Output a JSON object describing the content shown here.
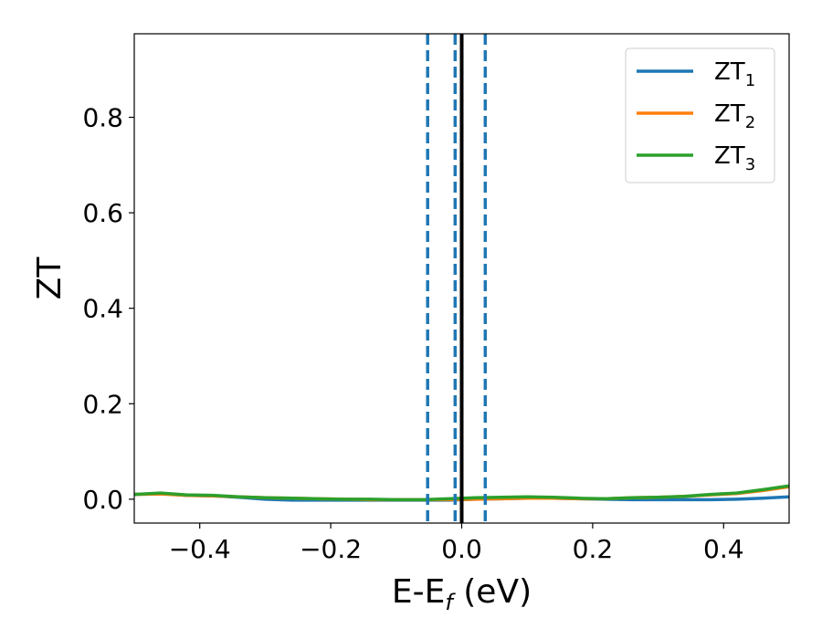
{
  "chart_data": {
    "type": "line",
    "xlabel": "E-E",
    "xlabel_sub": "f",
    "xlabel_unit": " (eV)",
    "ylabel": "ZT",
    "xlim": [
      -0.5,
      0.5
    ],
    "ylim": [
      -0.05,
      0.975
    ],
    "xticks": [
      -0.4,
      -0.2,
      0.0,
      0.2,
      0.4
    ],
    "xtick_labels": [
      "−0.4",
      "−0.2",
      "0.0",
      "0.2",
      "0.4"
    ],
    "yticks": [
      0.0,
      0.2,
      0.4,
      0.6,
      0.8
    ],
    "ytick_labels": [
      "0.0",
      "0.2",
      "0.4",
      "0.6",
      "0.8"
    ],
    "grid": false,
    "legend_position": "top-right",
    "vlines": [
      {
        "x": 0.0,
        "color": "#000000",
        "style": "solid"
      },
      {
        "x": -0.052,
        "color": "#1f77b4",
        "style": "dashed"
      },
      {
        "x": -0.01,
        "color": "#1f77b4",
        "style": "dashed"
      },
      {
        "x": 0.036,
        "color": "#1f77b4",
        "style": "dashed"
      }
    ],
    "series": [
      {
        "name": "ZT",
        "name_sub": "1",
        "color": "#1f77b4",
        "x": [
          -0.5,
          -0.46,
          -0.42,
          -0.38,
          -0.34,
          -0.3,
          -0.26,
          -0.22,
          -0.18,
          -0.14,
          -0.1,
          -0.06,
          -0.02,
          0.02,
          0.06,
          0.1,
          0.14,
          0.18,
          0.22,
          0.26,
          0.3,
          0.34,
          0.38,
          0.42,
          0.46,
          0.5
        ],
        "y": [
          0.01,
          0.012,
          0.008,
          0.007,
          0.004,
          0.0,
          -0.002,
          -0.002,
          -0.002,
          -0.002,
          -0.002,
          -0.002,
          -0.002,
          0.0,
          0.001,
          0.002,
          0.002,
          0.001,
          0.0,
          -0.001,
          -0.001,
          -0.001,
          -0.001,
          0.0,
          0.002,
          0.005
        ]
      },
      {
        "name": "ZT",
        "name_sub": "2",
        "color": "#ff7f0e",
        "x": [
          -0.5,
          -0.46,
          -0.42,
          -0.38,
          -0.34,
          -0.3,
          -0.26,
          -0.22,
          -0.18,
          -0.14,
          -0.1,
          -0.06,
          -0.02,
          0.02,
          0.06,
          0.1,
          0.14,
          0.18,
          0.22,
          0.26,
          0.3,
          0.34,
          0.38,
          0.42,
          0.46,
          0.5
        ],
        "y": [
          0.01,
          0.011,
          0.008,
          0.007,
          0.005,
          0.003,
          0.002,
          0.001,
          0.0,
          -0.001,
          -0.001,
          -0.001,
          -0.001,
          0.0,
          0.001,
          0.002,
          0.002,
          0.001,
          0.001,
          0.003,
          0.004,
          0.006,
          0.009,
          0.012,
          0.018,
          0.026
        ]
      },
      {
        "name": "ZT",
        "name_sub": "3",
        "color": "#2ca02c",
        "x": [
          -0.5,
          -0.46,
          -0.42,
          -0.38,
          -0.34,
          -0.3,
          -0.26,
          -0.22,
          -0.18,
          -0.14,
          -0.1,
          -0.06,
          -0.02,
          0.02,
          0.06,
          0.1,
          0.14,
          0.18,
          0.22,
          0.26,
          0.3,
          0.34,
          0.38,
          0.42,
          0.46,
          0.5
        ],
        "y": [
          0.01,
          0.013,
          0.009,
          0.008,
          0.005,
          0.003,
          0.002,
          0.001,
          0.0,
          0.0,
          -0.001,
          -0.001,
          0.001,
          0.003,
          0.004,
          0.005,
          0.004,
          0.002,
          0.001,
          0.003,
          0.004,
          0.006,
          0.01,
          0.013,
          0.02,
          0.028
        ]
      }
    ]
  }
}
